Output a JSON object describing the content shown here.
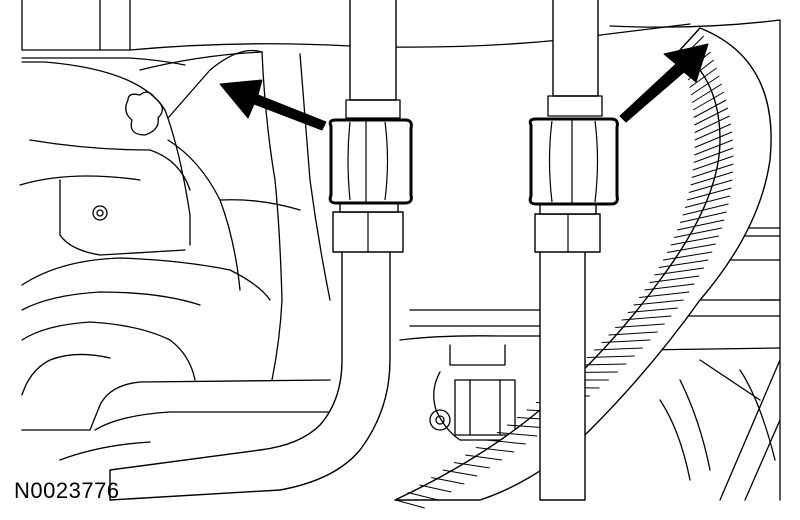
{
  "figure_id": "N0023776",
  "colors": {
    "background": "#ffffff",
    "line_art": "#000000",
    "callout_arrows": "#000000"
  }
}
